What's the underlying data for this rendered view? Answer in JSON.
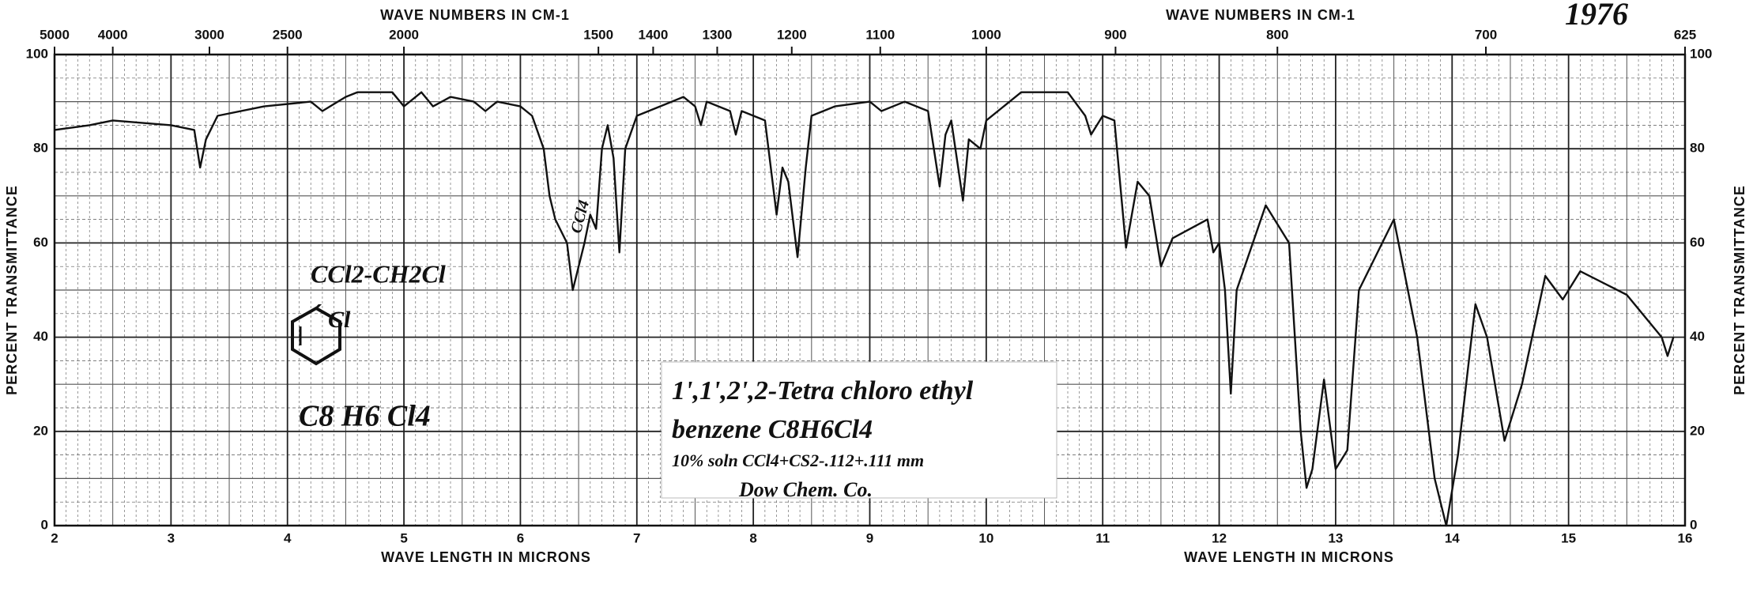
{
  "chart_data": {
    "type": "line",
    "title": "1976",
    "x_label": "WAVE LENGTH IN MICRONS",
    "y_label": "PERCENT TRANSMITTANCE",
    "x2_label": "WAVE NUMBERS IN CM-1",
    "annotations": [
      "CCl2-CH2Cl",
      "Cl",
      "C8 H6 Cl4",
      "1',1',2',2-Tetra chloro ethyl",
      "benzene  C8H6Cl4",
      "10% soln CCl4+CS2-.112+.111 mm",
      "Dow Chem. Co.",
      "CCl4"
    ],
    "color": "#111",
    "x": [
      2.0,
      2.3,
      2.5,
      3.0,
      3.2,
      3.25,
      3.3,
      3.4,
      3.8,
      4.2,
      4.3,
      4.5,
      4.6,
      4.9,
      5.0,
      5.15,
      5.25,
      5.4,
      5.6,
      5.7,
      5.8,
      6.0,
      6.1,
      6.2,
      6.25,
      6.3,
      6.4,
      6.45,
      6.55,
      6.6,
      6.65,
      6.7,
      6.75,
      6.8,
      6.85,
      6.9,
      7.0,
      7.3,
      7.4,
      7.5,
      7.55,
      7.6,
      7.8,
      7.85,
      7.9,
      8.1,
      8.2,
      8.25,
      8.3,
      8.38,
      8.45,
      8.5,
      8.7,
      9.0,
      9.1,
      9.3,
      9.5,
      9.6,
      9.65,
      9.7,
      9.8,
      9.85,
      9.95,
      10.0,
      10.3,
      10.7,
      10.85,
      10.9,
      11.0,
      11.1,
      11.2,
      11.3,
      11.4,
      11.5,
      11.6,
      11.9,
      11.95,
      12.0,
      12.05,
      12.1,
      12.15,
      12.4,
      12.6,
      12.7,
      12.75,
      12.8,
      12.9,
      13.0,
      13.1,
      13.2,
      13.5,
      13.7,
      13.85,
      13.95,
      14.05,
      14.2,
      14.3,
      14.45,
      14.6,
      14.8,
      14.95,
      15.1,
      15.5,
      15.8,
      15.85,
      15.9
    ],
    "values": [
      84,
      85,
      86,
      85,
      84,
      76,
      82,
      87,
      89,
      90,
      88,
      91,
      92,
      92,
      89,
      92,
      89,
      91,
      90,
      88,
      90,
      89,
      87,
      80,
      70,
      65,
      60,
      50,
      60,
      66,
      63,
      80,
      85,
      78,
      58,
      80,
      87,
      90,
      91,
      89,
      85,
      90,
      88,
      83,
      88,
      86,
      66,
      76,
      73,
      57,
      76,
      87,
      89,
      90,
      88,
      90,
      88,
      72,
      83,
      86,
      69,
      82,
      80,
      86,
      92,
      92,
      87,
      83,
      87,
      86,
      59,
      73,
      70,
      55,
      61,
      65,
      58,
      60,
      50,
      28,
      50,
      68,
      60,
      20,
      8,
      12,
      31,
      12,
      16,
      50,
      65,
      40,
      10,
      0,
      15,
      47,
      40,
      18,
      30,
      53,
      48,
      54,
      49,
      40,
      36,
      40
    ],
    "xlim": [
      2,
      16
    ],
    "ylim": [
      0,
      100
    ],
    "xticks": [
      2,
      3,
      4,
      5,
      6,
      7,
      8,
      9,
      10,
      11,
      12,
      13,
      14,
      15,
      16
    ],
    "yticks": [
      0,
      20,
      40,
      60,
      80,
      100
    ],
    "x2ticks": [
      {
        "value": 2.0,
        "label": "5000"
      },
      {
        "value": 2.5,
        "label": "4000"
      },
      {
        "value": 3.33,
        "label": "3000"
      },
      {
        "value": 4.0,
        "label": "2500"
      },
      {
        "value": 5.0,
        "label": "2000"
      },
      {
        "value": 6.67,
        "label": "1500"
      },
      {
        "value": 7.14,
        "label": "1400"
      },
      {
        "value": 7.69,
        "label": "1300"
      },
      {
        "value": 8.33,
        "label": "1200"
      },
      {
        "value": 9.09,
        "label": "1100"
      },
      {
        "value": 10.0,
        "label": "1000"
      },
      {
        "value": 11.11,
        "label": "900"
      },
      {
        "value": 12.5,
        "label": "800"
      },
      {
        "value": 14.29,
        "label": "700"
      },
      {
        "value": 16.0,
        "label": "625"
      }
    ],
    "grid": true
  }
}
